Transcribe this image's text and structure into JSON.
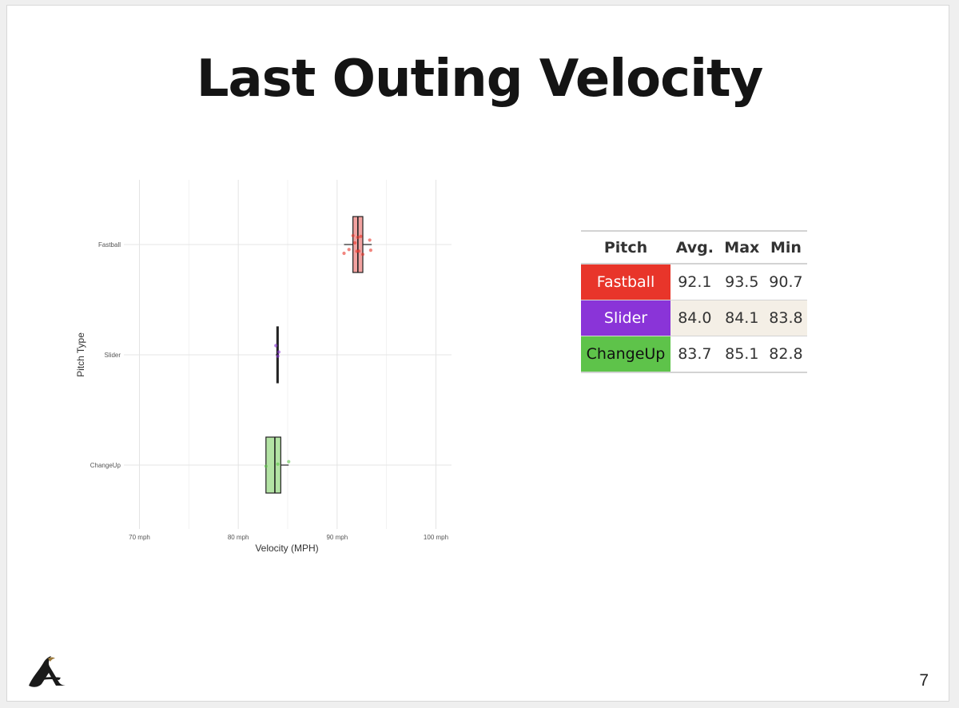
{
  "slide": {
    "title": "Last Outing Velocity",
    "page_number": "7"
  },
  "colors": {
    "fastball": "#e8352a",
    "slider": "#8a34d8",
    "changeup": "#5ec34a",
    "row_alt": "#f4efe6"
  },
  "chart_data": {
    "type": "boxplot",
    "xlabel": "Velocity (MPH)",
    "ylabel": "Pitch Type",
    "xlim": [
      70,
      100
    ],
    "x_ticks": [
      70,
      80,
      90,
      100
    ],
    "x_tick_labels": [
      "70 mph",
      "80 mph",
      "90 mph",
      "100 mph"
    ],
    "categories": [
      "Fastball",
      "Slider",
      "ChangeUp"
    ],
    "grid": true,
    "series": [
      {
        "name": "Fastball",
        "color": "#e8352a",
        "fill": "#f2a2a0",
        "q1": 91.6,
        "median": 92.1,
        "q3": 92.6,
        "whisker_low": 90.7,
        "whisker_high": 93.5,
        "points": [
          90.7,
          91.2,
          91.6,
          91.8,
          92.0,
          92.1,
          92.2,
          92.4,
          92.6,
          93.3,
          93.4
        ]
      },
      {
        "name": "Slider",
        "color": "#8a34d8",
        "fill": "#c9a3ee",
        "q1": 83.9,
        "median": 84.0,
        "q3": 84.05,
        "whisker_low": 83.8,
        "whisker_high": 84.1,
        "points": [
          83.8,
          84.0,
          84.1
        ]
      },
      {
        "name": "ChangeUp",
        "color": "#5ec34a",
        "fill": "#b3e3a4",
        "q1": 82.8,
        "median": 83.7,
        "q3": 84.3,
        "whisker_low": 82.8,
        "whisker_high": 85.1,
        "points": [
          82.8,
          84.0,
          85.1
        ]
      }
    ]
  },
  "table": {
    "headers": [
      "Pitch",
      "Avg.",
      "Max",
      "Min"
    ],
    "rows": [
      {
        "pitch": "Fastball",
        "avg": "92.1",
        "max": "93.5",
        "min": "90.7"
      },
      {
        "pitch": "Slider",
        "avg": "84.0",
        "max": "84.1",
        "min": "83.8"
      },
      {
        "pitch": "ChangeUp",
        "avg": "83.7",
        "max": "85.1",
        "min": "82.8"
      }
    ]
  },
  "logo": {
    "icon": "team-logo-icon",
    "color": "#1a1a1a",
    "accent": "#9c7a3c"
  }
}
